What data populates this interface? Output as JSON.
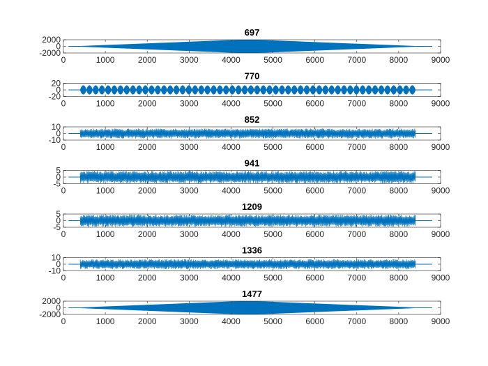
{
  "chart_data": [
    {
      "type": "line",
      "title": "697",
      "xlim": [
        0,
        9000
      ],
      "ylim": [
        -2000,
        2000
      ],
      "yticks": [
        -2000,
        0,
        2000
      ],
      "xticks": [
        0,
        1000,
        2000,
        3000,
        4000,
        5000,
        6000,
        7000,
        8000,
        9000
      ],
      "envelope": "diamond",
      "x_start": 400,
      "x_end": 8400,
      "signal_start": 120,
      "signal_end": 8800,
      "peak": 2000
    },
    {
      "type": "line",
      "title": "770",
      "xlim": [
        0,
        9000
      ],
      "ylim": [
        -20,
        20
      ],
      "yticks": [
        -20,
        0,
        20
      ],
      "xticks": [
        0,
        1000,
        2000,
        3000,
        4000,
        5000,
        6000,
        7000,
        8000,
        9000
      ],
      "envelope": "beating",
      "x_start": 400,
      "x_end": 8400,
      "signal_start": 120,
      "signal_end": 8800,
      "peak": 14,
      "beats": 54
    },
    {
      "type": "line",
      "title": "852",
      "xlim": [
        0,
        9000
      ],
      "ylim": [
        -10,
        10
      ],
      "yticks": [
        -10,
        0,
        10
      ],
      "xticks": [
        0,
        1000,
        2000,
        3000,
        4000,
        5000,
        6000,
        7000,
        8000,
        9000
      ],
      "envelope": "noise",
      "x_start": 400,
      "x_end": 8400,
      "signal_start": 120,
      "signal_end": 8800,
      "peak": 7.5
    },
    {
      "type": "line",
      "title": "941",
      "xlim": [
        0,
        9000
      ],
      "ylim": [
        -5,
        5
      ],
      "yticks": [
        -5,
        0,
        5
      ],
      "xticks": [
        0,
        1000,
        2000,
        3000,
        4000,
        5000,
        6000,
        7000,
        8000,
        9000
      ],
      "envelope": "noise",
      "x_start": 400,
      "x_end": 8400,
      "signal_start": 120,
      "signal_end": 8800,
      "peak": 4.7
    },
    {
      "type": "line",
      "title": "1209",
      "xlim": [
        0,
        9000
      ],
      "ylim": [
        -5,
        5
      ],
      "yticks": [
        -5,
        0,
        5
      ],
      "xticks": [
        0,
        1000,
        2000,
        3000,
        4000,
        5000,
        6000,
        7000,
        8000,
        9000
      ],
      "envelope": "noise",
      "x_start": 400,
      "x_end": 8400,
      "signal_start": 120,
      "signal_end": 8800,
      "peak": 4.6
    },
    {
      "type": "line",
      "title": "1336",
      "xlim": [
        0,
        9000
      ],
      "ylim": [
        -10,
        10
      ],
      "yticks": [
        -10,
        0,
        10
      ],
      "xticks": [
        0,
        1000,
        2000,
        3000,
        4000,
        5000,
        6000,
        7000,
        8000,
        9000
      ],
      "envelope": "noise",
      "x_start": 400,
      "x_end": 8400,
      "signal_start": 120,
      "signal_end": 8800,
      "peak": 7.5
    },
    {
      "type": "line",
      "title": "1477",
      "xlim": [
        0,
        9000
      ],
      "ylim": [
        -2000,
        2000
      ],
      "yticks": [
        -2000,
        0,
        2000
      ],
      "xticks": [
        0,
        1000,
        2000,
        3000,
        4000,
        5000,
        6000,
        7000,
        8000,
        9000
      ],
      "envelope": "diamond",
      "x_start": 400,
      "x_end": 8400,
      "signal_start": 120,
      "signal_end": 8800,
      "peak": 2000
    }
  ],
  "colors": {
    "line": "#0072BD",
    "axis": "#262626",
    "background": "#ffffff"
  }
}
